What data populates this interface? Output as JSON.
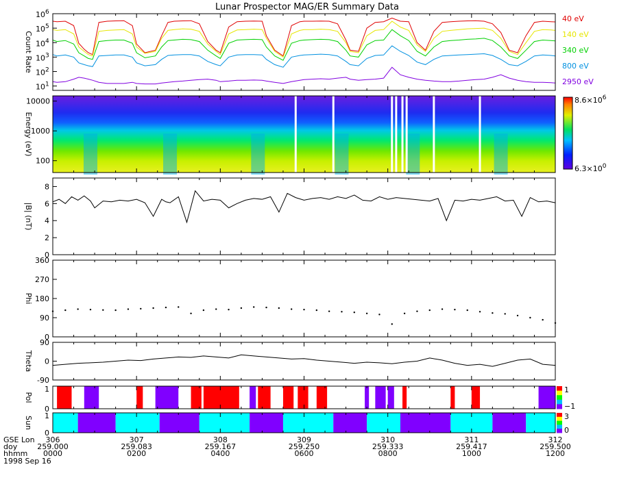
{
  "title": "Lunar Prospector MAG/ER Summary Data",
  "date_label": "1998 Sep 16",
  "axis_rows": [
    {
      "label": "GSE Lon",
      "ticks": [
        "306",
        "307",
        "308",
        "309",
        "310",
        "311",
        "312"
      ]
    },
    {
      "label": "doy",
      "ticks": [
        "259.000",
        "259.083",
        "259.167",
        "259.250",
        "259.333",
        "259.417",
        "259.500"
      ]
    },
    {
      "label": "hhmm",
      "ticks": [
        "0000",
        "0200",
        "0400",
        "0600",
        "0800",
        "1000",
        "1200"
      ]
    }
  ],
  "chart_data": [
    {
      "type": "line",
      "id": "count-rate",
      "ylabel": "Count Rate",
      "yscale": "log",
      "ylim": [
        5,
        1000000
      ],
      "yticks": [
        {
          "base": "10",
          "exp": "1",
          "value": 10
        },
        {
          "base": "10",
          "exp": "2",
          "value": 100
        },
        {
          "base": "10",
          "exp": "3",
          "value": 1000
        },
        {
          "base": "10",
          "exp": "4",
          "value": 10000
        },
        {
          "base": "10",
          "exp": "5",
          "value": 100000
        },
        {
          "base": "10",
          "exp": "6",
          "value": 1000000
        }
      ],
      "x_hours": [
        0,
        0.1,
        0.3,
        0.5,
        0.62,
        0.75,
        0.85,
        0.95,
        1.1,
        1.3,
        1.5,
        1.7,
        1.9,
        2.0,
        2.2,
        2.45,
        2.6,
        2.75,
        2.9,
        3.1,
        3.3,
        3.5,
        3.7,
        3.9,
        4.0,
        4.2,
        4.4,
        4.6,
        4.8,
        5.0,
        5.1,
        5.3,
        5.5,
        5.7,
        5.9,
        6.0,
        6.2,
        6.4,
        6.6,
        6.8,
        7.0,
        7.1,
        7.3,
        7.5,
        7.7,
        7.9,
        8.1,
        8.3,
        8.5,
        8.7,
        8.9,
        9.1,
        9.3,
        9.5,
        9.7,
        9.9,
        10.1,
        10.3,
        10.5,
        10.7,
        10.9,
        11.1,
        11.3,
        11.5,
        11.7,
        11.9,
        12.0
      ],
      "series": [
        {
          "name": "40 eV",
          "color": "#e00000",
          "values": [
            300000,
            280000,
            300000,
            150000,
            9000,
            3500,
            2000,
            1500,
            250000,
            300000,
            320000,
            330000,
            150000,
            8000,
            2000,
            3000,
            30000,
            250000,
            300000,
            320000,
            330000,
            200000,
            12000,
            3000,
            2000,
            120000,
            280000,
            300000,
            310000,
            300000,
            30000,
            3000,
            1200,
            150000,
            280000,
            300000,
            300000,
            310000,
            300000,
            200000,
            15000,
            3000,
            2500,
            100000,
            250000,
            280000,
            500000,
            300000,
            280000,
            10000,
            3000,
            60000,
            250000,
            280000,
            300000,
            320000,
            330000,
            300000,
            200000,
            50000,
            3000,
            2000,
            30000,
            250000,
            300000,
            280000,
            270000
          ]
        },
        {
          "name": "140 eV",
          "color": "#e6e600",
          "values": [
            80000,
            70000,
            80000,
            40000,
            5000,
            2500,
            1500,
            1200,
            60000,
            70000,
            75000,
            80000,
            40000,
            5000,
            1800,
            2500,
            20000,
            70000,
            80000,
            90000,
            85000,
            60000,
            8000,
            2500,
            1500,
            40000,
            75000,
            80000,
            85000,
            80000,
            20000,
            2500,
            1000,
            40000,
            70000,
            80000,
            80000,
            85000,
            80000,
            60000,
            10000,
            2500,
            2000,
            30000,
            70000,
            80000,
            300000,
            120000,
            70000,
            7000,
            2500,
            20000,
            60000,
            70000,
            80000,
            90000,
            95000,
            100000,
            70000,
            20000,
            2500,
            1500,
            10000,
            60000,
            80000,
            75000,
            70000
          ]
        },
        {
          "name": "340 eV",
          "color": "#00d000",
          "values": [
            15000,
            12000,
            14000,
            8000,
            2000,
            1200,
            800,
            700,
            12000,
            14000,
            15000,
            15000,
            9000,
            2000,
            900,
            1200,
            5000,
            14000,
            15000,
            17000,
            16000,
            12000,
            3000,
            1200,
            800,
            9000,
            15000,
            16000,
            17000,
            16000,
            5000,
            1200,
            600,
            9000,
            14000,
            15000,
            16000,
            17000,
            16000,
            12000,
            3000,
            1200,
            1000,
            7000,
            14000,
            15000,
            80000,
            30000,
            14000,
            2500,
            1200,
            5000,
            12000,
            14000,
            15000,
            17000,
            18000,
            20000,
            14000,
            5000,
            1200,
            800,
            3000,
            12000,
            15000,
            14000,
            13000
          ]
        },
        {
          "name": "800 eV",
          "color": "#0090e0",
          "values": [
            1500,
            1200,
            1400,
            1000,
            400,
            300,
            250,
            220,
            1200,
            1300,
            1400,
            1400,
            1000,
            400,
            250,
            300,
            700,
            1300,
            1400,
            1500,
            1500,
            1200,
            500,
            300,
            250,
            1000,
            1400,
            1500,
            1500,
            1400,
            700,
            300,
            200,
            1000,
            1300,
            1400,
            1500,
            1600,
            1500,
            1200,
            500,
            300,
            250,
            800,
            1300,
            1400,
            6000,
            2500,
            1300,
            450,
            300,
            700,
            1200,
            1300,
            1400,
            1500,
            1600,
            1700,
            1300,
            700,
            300,
            250,
            500,
            1200,
            1400,
            1300,
            1200
          ]
        },
        {
          "name": "2950 eV",
          "color": "#8000e0",
          "values": [
            20,
            18,
            20,
            30,
            40,
            35,
            30,
            25,
            18,
            15,
            15,
            15,
            18,
            15,
            14,
            14,
            16,
            18,
            20,
            22,
            25,
            28,
            30,
            25,
            20,
            22,
            25,
            25,
            26,
            25,
            22,
            18,
            15,
            20,
            25,
            28,
            30,
            32,
            30,
            35,
            40,
            30,
            25,
            28,
            30,
            35,
            200,
            60,
            40,
            30,
            25,
            22,
            20,
            20,
            22,
            25,
            28,
            30,
            40,
            60,
            35,
            25,
            20,
            18,
            18,
            17,
            16
          ]
        }
      ]
    },
    {
      "type": "heatmap",
      "id": "energy-spectrogram",
      "ylabel": "Energy (eV)",
      "yscale": "log",
      "ylim": [
        40,
        15000
      ],
      "yticks": [
        "100",
        "1000",
        "10000"
      ],
      "colorbar_max": {
        "base": "8.6×10",
        "exp": "6"
      },
      "colorbar_min": {
        "base": "6.3×10",
        "exp": "0"
      },
      "gaps_hours": [
        5.8,
        6.7,
        8.1,
        8.2,
        8.35,
        8.45,
        9.1,
        10.2
      ]
    },
    {
      "type": "line",
      "id": "b-magnitude",
      "ylabel": "|B| (nT)",
      "ylim": [
        0,
        9
      ],
      "yticks": [
        "0",
        "2",
        "4",
        "6",
        "8"
      ],
      "x_hours": [
        0,
        0.15,
        0.3,
        0.45,
        0.6,
        0.75,
        0.9,
        1.0,
        1.2,
        1.4,
        1.6,
        1.8,
        2.0,
        2.2,
        2.4,
        2.6,
        2.7,
        2.8,
        3.0,
        3.2,
        3.4,
        3.6,
        3.8,
        4.0,
        4.2,
        4.4,
        4.6,
        4.8,
        5.0,
        5.2,
        5.4,
        5.6,
        5.8,
        6.0,
        6.2,
        6.4,
        6.6,
        6.8,
        7.0,
        7.2,
        7.4,
        7.6,
        7.8,
        8.0,
        8.2,
        8.4,
        8.6,
        8.8,
        9.0,
        9.2,
        9.4,
        9.6,
        9.8,
        10.0,
        10.2,
        10.4,
        10.6,
        10.8,
        11.0,
        11.2,
        11.4,
        11.6,
        11.8,
        12.0
      ],
      "series": [
        {
          "name": "",
          "color": "#000000",
          "values": [
            6.2,
            6.5,
            6.0,
            6.8,
            6.4,
            6.9,
            6.3,
            5.5,
            6.3,
            6.2,
            6.4,
            6.3,
            6.5,
            6.1,
            4.5,
            6.5,
            6.2,
            6.1,
            6.8,
            3.8,
            7.5,
            6.3,
            6.5,
            6.4,
            5.5,
            6.0,
            6.4,
            6.6,
            6.5,
            6.8,
            5.0,
            7.2,
            6.7,
            6.4,
            6.6,
            6.7,
            6.5,
            6.8,
            6.6,
            7.0,
            6.4,
            6.3,
            6.8,
            6.5,
            6.7,
            6.6,
            6.5,
            6.4,
            6.3,
            6.6,
            4.0,
            6.4,
            6.3,
            6.5,
            6.4,
            6.6,
            6.8,
            6.3,
            6.4,
            4.5,
            6.7,
            6.2,
            6.3,
            6.1
          ]
        }
      ]
    },
    {
      "type": "scatter",
      "id": "phi",
      "ylabel": "Phi",
      "ylim": [
        0,
        360
      ],
      "yticks": [
        "0",
        "90",
        "180",
        "270",
        "360"
      ],
      "x_hours": [
        0,
        0.3,
        0.6,
        0.9,
        1.2,
        1.5,
        1.8,
        2.1,
        2.4,
        2.7,
        3.0,
        3.3,
        3.6,
        3.9,
        4.2,
        4.5,
        4.8,
        5.1,
        5.4,
        5.7,
        6.0,
        6.3,
        6.6,
        6.9,
        7.2,
        7.5,
        7.8,
        8.1,
        8.4,
        8.7,
        9.0,
        9.3,
        9.6,
        9.9,
        10.2,
        10.5,
        10.8,
        11.1,
        11.4,
        11.7,
        12.0
      ],
      "series": [
        {
          "name": "",
          "color": "#000000",
          "values": [
            120,
            125,
            130,
            128,
            126,
            125,
            130,
            132,
            135,
            138,
            140,
            110,
            125,
            130,
            128,
            135,
            140,
            138,
            135,
            130,
            128,
            125,
            120,
            118,
            115,
            110,
            105,
            60,
            110,
            120,
            125,
            130,
            128,
            125,
            118,
            112,
            108,
            100,
            90,
            80,
            65
          ]
        }
      ]
    },
    {
      "type": "line",
      "id": "theta",
      "ylabel": "Theta",
      "ylim": [
        -90,
        90
      ],
      "yticks": [
        "-90",
        "0",
        "90"
      ],
      "x_hours": [
        0,
        0.3,
        0.6,
        0.9,
        1.2,
        1.5,
        1.8,
        2.1,
        2.4,
        2.7,
        3.0,
        3.3,
        3.6,
        3.9,
        4.2,
        4.5,
        4.8,
        5.1,
        5.4,
        5.7,
        6.0,
        6.3,
        6.6,
        6.9,
        7.2,
        7.5,
        7.8,
        8.1,
        8.4,
        8.7,
        9.0,
        9.3,
        9.6,
        9.9,
        10.2,
        10.5,
        10.8,
        11.1,
        11.4,
        11.7,
        12.0
      ],
      "series": [
        {
          "name": "",
          "color": "#000000",
          "values": [
            -20,
            -15,
            -10,
            -8,
            -5,
            0,
            5,
            3,
            10,
            15,
            20,
            18,
            25,
            20,
            15,
            30,
            25,
            20,
            15,
            10,
            12,
            5,
            0,
            -5,
            -10,
            -5,
            -8,
            -12,
            -5,
            0,
            15,
            5,
            -10,
            -20,
            -15,
            -25,
            -10,
            5,
            10,
            -15,
            -20
          ]
        }
      ]
    },
    {
      "type": "heatmap",
      "id": "pol",
      "ylabel": "Pol",
      "yticks": [
        "0",
        "1"
      ],
      "colorbar_labels": [
        "1",
        "−1"
      ],
      "colors": {
        "red": "#ff0000",
        "purple": "#8000ff"
      },
      "segments": [
        {
          "start": 0.1,
          "end": 0.45,
          "color": "red"
        },
        {
          "start": 0.75,
          "end": 1.1,
          "color": "purple"
        },
        {
          "start": 2.0,
          "end": 2.15,
          "color": "red"
        },
        {
          "start": 2.45,
          "end": 3.0,
          "color": "purple"
        },
        {
          "start": 3.3,
          "end": 3.55,
          "color": "red"
        },
        {
          "start": 3.6,
          "end": 4.45,
          "color": "red"
        },
        {
          "start": 4.7,
          "end": 4.85,
          "color": "purple"
        },
        {
          "start": 4.9,
          "end": 5.2,
          "color": "red"
        },
        {
          "start": 5.5,
          "end": 5.75,
          "color": "red"
        },
        {
          "start": 5.85,
          "end": 6.1,
          "color": "red"
        },
        {
          "start": 6.3,
          "end": 6.55,
          "color": "red"
        },
        {
          "start": 7.45,
          "end": 7.55,
          "color": "purple"
        },
        {
          "start": 7.7,
          "end": 7.95,
          "color": "purple"
        },
        {
          "start": 8.0,
          "end": 8.15,
          "color": "purple"
        },
        {
          "start": 8.35,
          "end": 8.45,
          "color": "red"
        },
        {
          "start": 9.5,
          "end": 9.6,
          "color": "red"
        },
        {
          "start": 10.0,
          "end": 10.2,
          "color": "red"
        },
        {
          "start": 11.6,
          "end": 12.0,
          "color": "purple"
        }
      ]
    },
    {
      "type": "heatmap",
      "id": "sun",
      "ylabel": "Sun",
      "yticks": [
        "0",
        "1"
      ],
      "colorbar_labels": [
        "3",
        "0"
      ],
      "colors": {
        "cyan": "#00ffff",
        "purple": "#8000ff"
      },
      "segments": [
        {
          "start": 0.0,
          "end": 0.6,
          "color": "cyan"
        },
        {
          "start": 0.6,
          "end": 1.5,
          "color": "purple"
        },
        {
          "start": 1.5,
          "end": 2.55,
          "color": "cyan"
        },
        {
          "start": 2.55,
          "end": 3.5,
          "color": "purple"
        },
        {
          "start": 3.5,
          "end": 4.7,
          "color": "cyan"
        },
        {
          "start": 4.7,
          "end": 5.5,
          "color": "purple"
        },
        {
          "start": 5.5,
          "end": 6.7,
          "color": "cyan"
        },
        {
          "start": 6.7,
          "end": 7.5,
          "color": "purple"
        },
        {
          "start": 7.5,
          "end": 8.3,
          "color": "cyan"
        },
        {
          "start": 8.3,
          "end": 9.5,
          "color": "purple"
        },
        {
          "start": 9.5,
          "end": 10.5,
          "color": "cyan"
        },
        {
          "start": 10.5,
          "end": 11.3,
          "color": "purple"
        },
        {
          "start": 11.3,
          "end": 12.0,
          "color": "cyan"
        }
      ]
    }
  ]
}
